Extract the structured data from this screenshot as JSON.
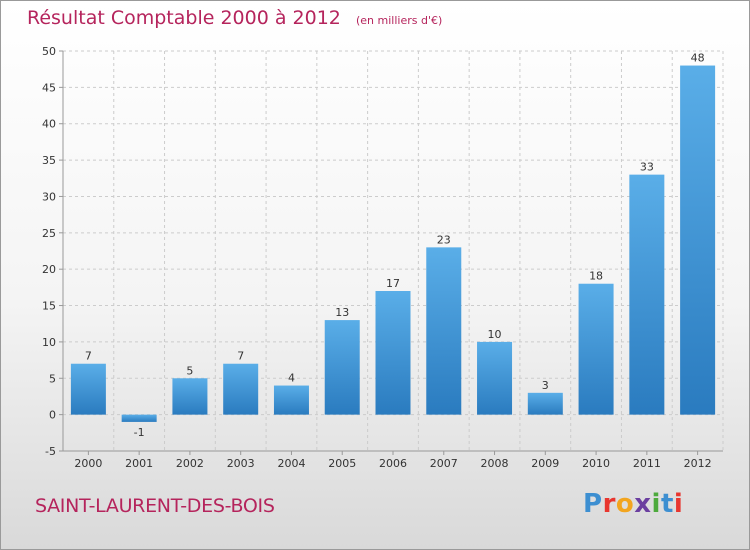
{
  "header": {
    "title": "Résultat Comptable 2000 à 2012",
    "unit": "(en milliers d'€)"
  },
  "footer": {
    "commune": "SAINT-LAURENT-DES-BOIS",
    "logo_letters": [
      "P",
      "r",
      "o",
      "x",
      "i",
      "t",
      "i"
    ],
    "logo_colors": [
      "#3d8fd1",
      "#e8362f",
      "#f2a51f",
      "#6b3fa0",
      "#4daa3d",
      "#3d8fd1",
      "#e8362f"
    ]
  },
  "colors": {
    "bar_top": "#5aaee8",
    "bar_bottom": "#2a7bbf",
    "grid": "#cccccc",
    "axis": "#999999",
    "title": "#b5245c"
  },
  "chart_data": {
    "type": "bar",
    "title": "Résultat Comptable 2000 à 2012",
    "subtitle": "(en milliers d'€)",
    "categories": [
      "2000",
      "2001",
      "2002",
      "2003",
      "2004",
      "2005",
      "2006",
      "2007",
      "2008",
      "2009",
      "2010",
      "2011",
      "2012"
    ],
    "values": [
      7,
      -1,
      5,
      7,
      4,
      13,
      17,
      23,
      10,
      3,
      18,
      33,
      48
    ],
    "value_labels": [
      "7",
      "-1",
      "5",
      "7",
      "4",
      "13",
      "17",
      "23",
      "10",
      "3",
      "18",
      "33",
      "48"
    ],
    "ylim": [
      -5,
      50
    ],
    "yticks": [
      -5,
      0,
      5,
      10,
      15,
      20,
      25,
      30,
      35,
      40,
      45,
      50
    ],
    "ytick_labels": [
      "-5",
      "0",
      "5",
      "10",
      "15",
      "20",
      "25",
      "30",
      "35",
      "40",
      "45",
      "50"
    ],
    "xlabel": "",
    "ylabel": "",
    "grid": "horizontal-dashed",
    "legend": "none"
  }
}
